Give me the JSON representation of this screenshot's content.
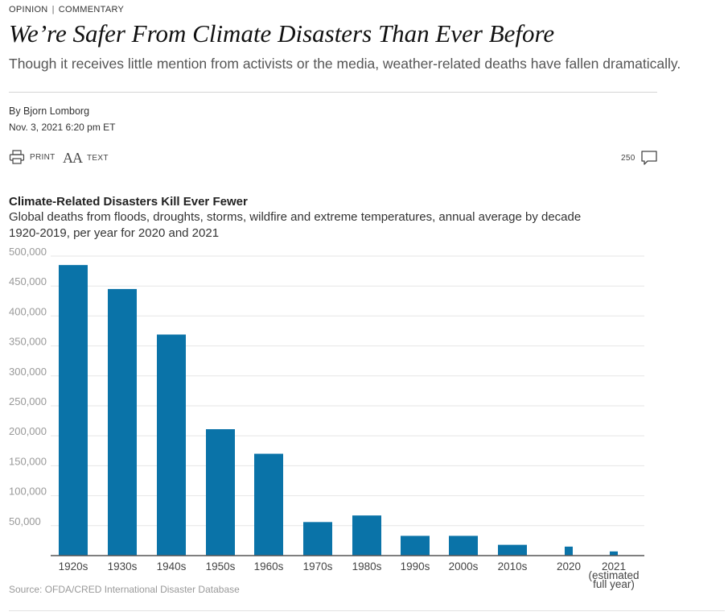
{
  "header": {
    "section": "OPINION",
    "category": "COMMENTARY",
    "headline": "We’re Safer From Climate Disasters Than Ever Before",
    "dek": "Though it receives little mention from activists or the media, weather-related deaths have fallen dramatically.",
    "byline": "By Bjorn Lomborg",
    "date": "Nov. 3, 2021 6:20 pm ET"
  },
  "tools": {
    "print_label": "PRINT",
    "text_label": "TEXT",
    "text_icon": "AA",
    "comment_count": "250"
  },
  "chart_data": {
    "type": "bar",
    "title": "Climate-Related Disasters Kill Ever Fewer",
    "subtitle": [
      "Global deaths from floods, droughts, storms, wildfire and extreme temperatures, annual average by decade",
      "1920-2019, per year for 2020 and 2021"
    ],
    "categories": [
      "1920s",
      "1930s",
      "1940s",
      "1950s",
      "1960s",
      "1970s",
      "1980s",
      "1990s",
      "2000s",
      "2010s",
      "2020",
      "2021"
    ],
    "category_labels": [
      [
        "1920s"
      ],
      [
        "1930s"
      ],
      [
        "1940s"
      ],
      [
        "1950s"
      ],
      [
        "1960s"
      ],
      [
        "1970s"
      ],
      [
        "1980s"
      ],
      [
        "1990s"
      ],
      [
        "2000s"
      ],
      [
        "2010s"
      ],
      [
        "2020"
      ],
      [
        "2021",
        "(estimated",
        "full year)"
      ]
    ],
    "values": [
      485000,
      445000,
      369000,
      211000,
      170000,
      56000,
      67000,
      33000,
      33000,
      18000,
      15000,
      7000
    ],
    "ylim": [
      0,
      500000
    ],
    "yticks": [
      50000,
      100000,
      150000,
      200000,
      250000,
      300000,
      350000,
      400000,
      450000,
      500000
    ],
    "ytick_labels": [
      "50,000",
      "100,000",
      "150,000",
      "200,000",
      "250,000",
      "300,000",
      "350,000",
      "400,000",
      "450,000",
      "500,000"
    ],
    "grid": true,
    "bar_color": "#0a73a8",
    "source": "Source: OFDA/CRED International Disaster Database"
  }
}
